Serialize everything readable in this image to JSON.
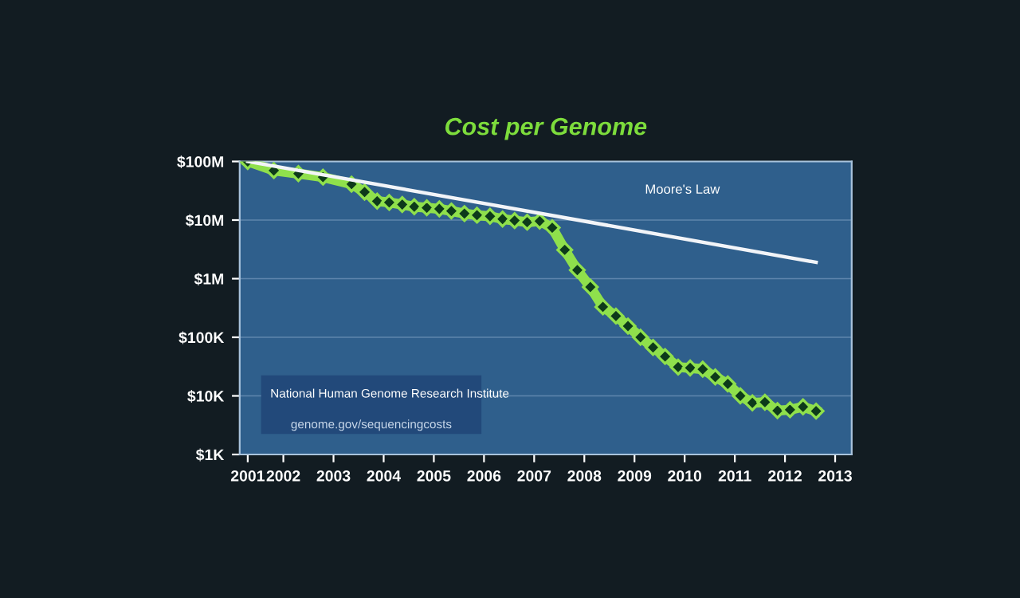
{
  "chart_data": {
    "type": "line",
    "title": "Cost per Genome",
    "xlim": [
      2001.13,
      2013.33
    ],
    "xticks": [
      {
        "value": 2001.29,
        "label": "2001"
      },
      2002,
      2003,
      2004,
      2005,
      2006,
      2007,
      2008,
      2009,
      2010,
      2011,
      2012,
      2013
    ],
    "ylim": [
      1000,
      100000000
    ],
    "log": true,
    "yticks": [
      {
        "value": 1000,
        "label": "$1K"
      },
      {
        "value": 10000,
        "label": "$10K"
      },
      {
        "value": 100000,
        "label": "$100K"
      },
      {
        "value": 1000000,
        "label": "$1M"
      },
      {
        "value": 10000000,
        "label": "$10M"
      },
      {
        "value": 100000000,
        "label": "$100M"
      }
    ],
    "grid": "y",
    "line_style": "solid",
    "series": [
      {
        "color": "#8fe04c",
        "marker": "diamond",
        "x": [
          2001.29,
          2001.81,
          2002.3,
          2002.79,
          2003.36,
          2003.62,
          2003.87,
          2004.11,
          2004.37,
          2004.61,
          2004.86,
          2005.11,
          2005.35,
          2005.61,
          2005.86,
          2006.12,
          2006.37,
          2006.61,
          2006.86,
          2007.11,
          2007.36,
          2007.61,
          2007.86,
          2008.12,
          2008.37,
          2008.63,
          2008.87,
          2009.12,
          2009.37,
          2009.61,
          2009.87,
          2010.11,
          2010.36,
          2010.61,
          2010.86,
          2011.11,
          2011.35,
          2011.6,
          2011.85,
          2012.1,
          2012.36,
          2012.62
        ],
        "values": [
          100000000,
          70000000,
          62000000,
          54000000,
          41000000,
          30000000,
          21000000,
          20000000,
          18400000,
          16900000,
          16200000,
          15500000,
          14300000,
          12900000,
          12100000,
          11600000,
          10400000,
          9800000,
          9200000,
          9600000,
          7400000,
          3100000,
          1400000,
          720000,
          330000,
          230000,
          155000,
          100000,
          67000,
          47000,
          31000,
          30000,
          28500,
          21000,
          16000,
          10000,
          7600,
          7800,
          5600,
          5800,
          6500,
          5500
        ]
      },
      {
        "name": "Moore's Law",
        "color": "#f2f4f8",
        "marker": "none",
        "x": [
          2001.29,
          2012.62
        ],
        "values": [
          100000000,
          1900000
        ]
      }
    ],
    "annotations": [
      "National Human Genome Research Institute",
      "genome.gov/sequencingcosts"
    ]
  }
}
